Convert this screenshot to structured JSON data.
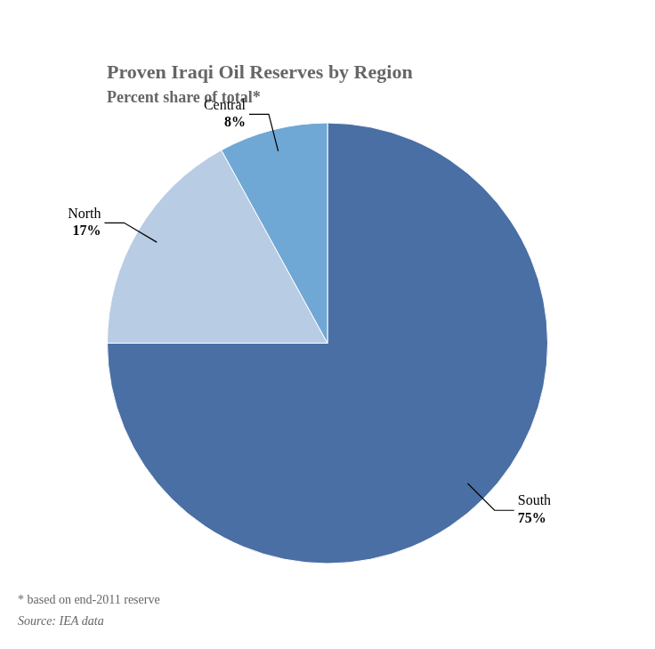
{
  "chart_data": {
    "type": "pie",
    "title": "Proven Iraqi Oil Reserves by Region",
    "subtitle": "Percent share of total*",
    "categories": [
      "South",
      "North",
      "Central"
    ],
    "values": [
      75,
      17,
      8
    ],
    "value_labels": [
      "75%",
      "17%",
      "8%"
    ],
    "colors": [
      "#4a6fa5",
      "#b8cce4",
      "#6fa8d4"
    ],
    "data_labels": true,
    "annotations": [
      "* based on end-2011 reserve",
      "Source: IEA data"
    ]
  }
}
